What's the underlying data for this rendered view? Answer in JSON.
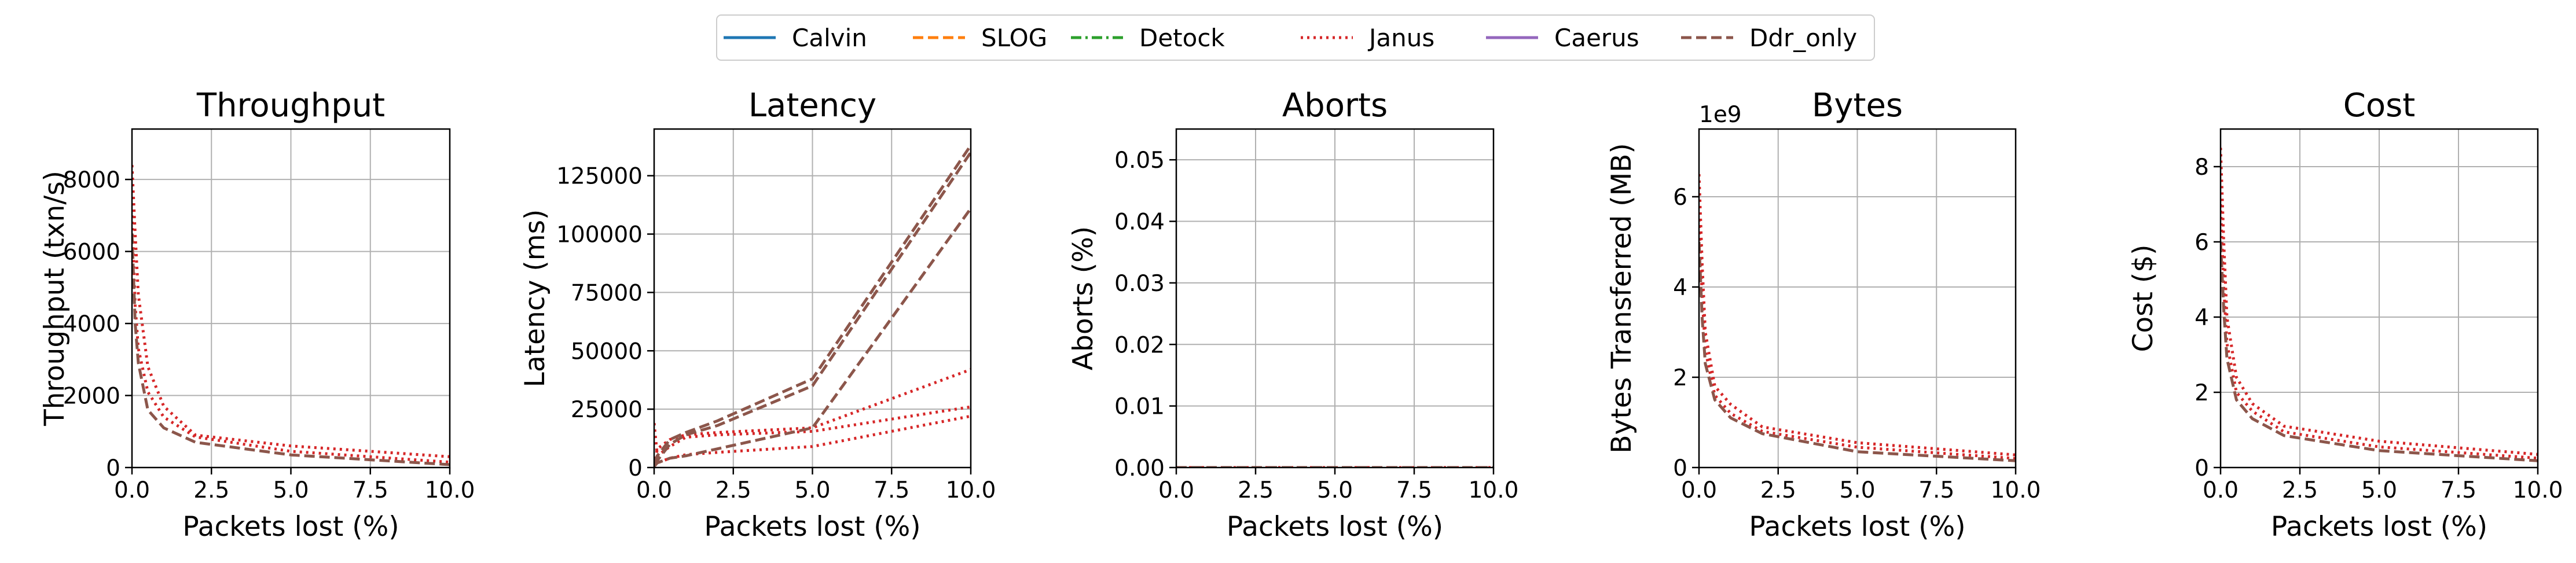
{
  "legend": {
    "placement": "top-center",
    "entries": [
      {
        "name": "Calvin",
        "color": "#1f77b4",
        "dash": "solid"
      },
      {
        "name": "SLOG",
        "color": "#ff7f0e",
        "dash": "dashed"
      },
      {
        "name": "Detock",
        "color": "#2ca02c",
        "dash": "dashdot"
      },
      {
        "name": "Janus",
        "color": "#d62728",
        "dash": "dotted"
      },
      {
        "name": "Caerus",
        "color": "#9467bd",
        "dash": "solid"
      },
      {
        "name": "Ddr_only",
        "color": "#8c564b",
        "dash": "dashed"
      }
    ]
  },
  "chart_data": [
    {
      "type": "line",
      "title": "Throughput",
      "xlabel": "Packets lost (%)",
      "ylabel": "Throughput (txn/s)",
      "offset_label": "",
      "xlim": [
        0,
        10
      ],
      "ylim": [
        0,
        9400
      ],
      "xticks": [
        0,
        2.5,
        5,
        7.5,
        10
      ],
      "xtick_labels": [
        "0.0",
        "2.5",
        "5.0",
        "7.5",
        "10.0"
      ],
      "yticks": [
        0,
        2000,
        4000,
        6000,
        8000
      ],
      "ytick_labels": [
        "0",
        "2000",
        "4000",
        "6000",
        "8000"
      ],
      "grid": true,
      "series": [
        {
          "name": "Janus",
          "x": [
            0,
            0.1,
            0.2,
            0.5,
            1,
            2,
            5,
            10
          ],
          "y": [
            8400,
            6500,
            4800,
            2800,
            1700,
            900,
            600,
            300
          ]
        },
        {
          "name": "Janus",
          "x": [
            0,
            0.1,
            0.2,
            0.5,
            1,
            2,
            5,
            10
          ],
          "y": [
            7000,
            4500,
            3300,
            2100,
            1400,
            850,
            450,
            150
          ]
        },
        {
          "name": "Ddr_only",
          "x": [
            0,
            0.1,
            0.2,
            0.5,
            1,
            2,
            5,
            10
          ],
          "y": [
            6500,
            4000,
            2900,
            1600,
            1100,
            700,
            350,
            80
          ]
        }
      ]
    },
    {
      "type": "line",
      "title": "Latency",
      "xlabel": "Packets lost (%)",
      "ylabel": "Latency (ms)",
      "offset_label": "",
      "xlim": [
        0,
        10
      ],
      "ylim": [
        0,
        145000
      ],
      "xticks": [
        0,
        2.5,
        5,
        7.5,
        10
      ],
      "xtick_labels": [
        "0.0",
        "2.5",
        "5.0",
        "7.5",
        "10.0"
      ],
      "yticks": [
        0,
        25000,
        50000,
        75000,
        100000,
        125000
      ],
      "ytick_labels": [
        "0",
        "25000",
        "50000",
        "75000",
        "100000",
        "125000"
      ],
      "grid": true,
      "series": [
        {
          "name": "Janus",
          "x": [
            0,
            0.1,
            0.5,
            1,
            2,
            5,
            10
          ],
          "y": [
            19000,
            5000,
            9000,
            13000,
            14000,
            15500,
            26000
          ]
        },
        {
          "name": "Janus",
          "x": [
            0,
            0.1,
            0.5,
            1,
            2,
            5,
            10
          ],
          "y": [
            1000,
            8000,
            12000,
            14000,
            15000,
            17000,
            42000
          ]
        },
        {
          "name": "Janus",
          "x": [
            0,
            0.1,
            0.5,
            1,
            2,
            5,
            10
          ],
          "y": [
            500,
            2000,
            4000,
            5500,
            6500,
            9000,
            22000
          ]
        },
        {
          "name": "Ddr_only",
          "x": [
            0,
            0.1,
            0.5,
            1,
            2,
            5,
            10
          ],
          "y": [
            2000,
            5000,
            12000,
            15000,
            20000,
            38000,
            138000
          ]
        },
        {
          "name": "Ddr_only",
          "x": [
            0,
            0.1,
            0.5,
            1,
            2,
            5,
            10
          ],
          "y": [
            1000,
            3000,
            10000,
            14000,
            18000,
            35000,
            135000
          ]
        },
        {
          "name": "Ddr_only",
          "x": [
            0,
            0.1,
            0.5,
            1,
            2,
            5,
            10
          ],
          "y": [
            500,
            2000,
            4000,
            5000,
            8000,
            17000,
            111000
          ]
        }
      ]
    },
    {
      "type": "line",
      "title": "Aborts",
      "xlabel": "Packets lost (%)",
      "ylabel": "Aborts (%)",
      "offset_label": "",
      "xlim": [
        0,
        10
      ],
      "ylim": [
        0,
        0.055
      ],
      "xticks": [
        0,
        2.5,
        5,
        7.5,
        10
      ],
      "xtick_labels": [
        "0.0",
        "2.5",
        "5.0",
        "7.5",
        "10.0"
      ],
      "yticks": [
        0,
        0.01,
        0.02,
        0.03,
        0.04,
        0.05
      ],
      "ytick_labels": [
        "0.00",
        "0.01",
        "0.02",
        "0.03",
        "0.04",
        "0.05"
      ],
      "grid": true,
      "series": [
        {
          "name": "Janus",
          "x": [
            0,
            0.1,
            0.2,
            0.5,
            1,
            2,
            5,
            10
          ],
          "y": [
            0,
            0,
            0,
            0,
            0,
            0,
            0,
            0
          ]
        },
        {
          "name": "Ddr_only",
          "x": [
            0,
            0.1,
            0.2,
            0.5,
            1,
            2,
            5,
            10
          ],
          "y": [
            0,
            0,
            0,
            0,
            0,
            0,
            0,
            0
          ]
        }
      ]
    },
    {
      "type": "line",
      "title": "Bytes",
      "xlabel": "Packets lost (%)",
      "ylabel": "Bytes Transferred (MB)",
      "offset_label": "1e9",
      "xlim": [
        0,
        10
      ],
      "ylim": [
        0,
        7.5
      ],
      "xticks": [
        0,
        2.5,
        5,
        7.5,
        10
      ],
      "xtick_labels": [
        "0.0",
        "2.5",
        "5.0",
        "7.5",
        "10.0"
      ],
      "yticks": [
        0,
        2,
        4,
        6
      ],
      "ytick_labels": [
        "0",
        "2",
        "4",
        "6"
      ],
      "grid": true,
      "series": [
        {
          "name": "Janus",
          "x": [
            0,
            0.1,
            0.2,
            0.5,
            1,
            2,
            5,
            10
          ],
          "y": [
            6.5,
            4.5,
            3.0,
            1.8,
            1.4,
            0.9,
            0.55,
            0.28
          ]
        },
        {
          "name": "Janus",
          "x": [
            0,
            0.1,
            0.2,
            0.5,
            1,
            2,
            5,
            10
          ],
          "y": [
            5.5,
            3.8,
            2.6,
            1.6,
            1.2,
            0.8,
            0.45,
            0.2
          ]
        },
        {
          "name": "Ddr_only",
          "x": [
            0,
            0.1,
            0.2,
            0.5,
            1,
            2,
            5,
            10
          ],
          "y": [
            5.0,
            3.3,
            2.3,
            1.5,
            1.1,
            0.75,
            0.35,
            0.15
          ]
        }
      ]
    },
    {
      "type": "line",
      "title": "Cost",
      "xlabel": "Packets lost (%)",
      "ylabel": "Cost ($)",
      "offset_label": "",
      "xlim": [
        0,
        10
      ],
      "ylim": [
        0,
        9
      ],
      "xticks": [
        0,
        2.5,
        5,
        7.5,
        10
      ],
      "xtick_labels": [
        "0.0",
        "2.5",
        "5.0",
        "7.5",
        "10.0"
      ],
      "yticks": [
        0,
        2,
        4,
        6,
        8
      ],
      "ytick_labels": [
        "0",
        "2",
        "4",
        "6",
        "8"
      ],
      "grid": true,
      "series": [
        {
          "name": "Janus",
          "x": [
            0,
            0.1,
            0.2,
            0.5,
            1,
            2,
            5,
            10
          ],
          "y": [
            8.5,
            6.0,
            4.0,
            2.4,
            1.7,
            1.1,
            0.7,
            0.35
          ]
        },
        {
          "name": "Janus",
          "x": [
            0,
            0.1,
            0.2,
            0.5,
            1,
            2,
            5,
            10
          ],
          "y": [
            7.0,
            4.8,
            3.3,
            2.0,
            1.5,
            0.95,
            0.55,
            0.25
          ]
        },
        {
          "name": "Ddr_only",
          "x": [
            0,
            0.1,
            0.2,
            0.5,
            1,
            2,
            5,
            10
          ],
          "y": [
            6.0,
            4.2,
            2.9,
            1.8,
            1.3,
            0.85,
            0.45,
            0.18
          ]
        }
      ]
    }
  ]
}
